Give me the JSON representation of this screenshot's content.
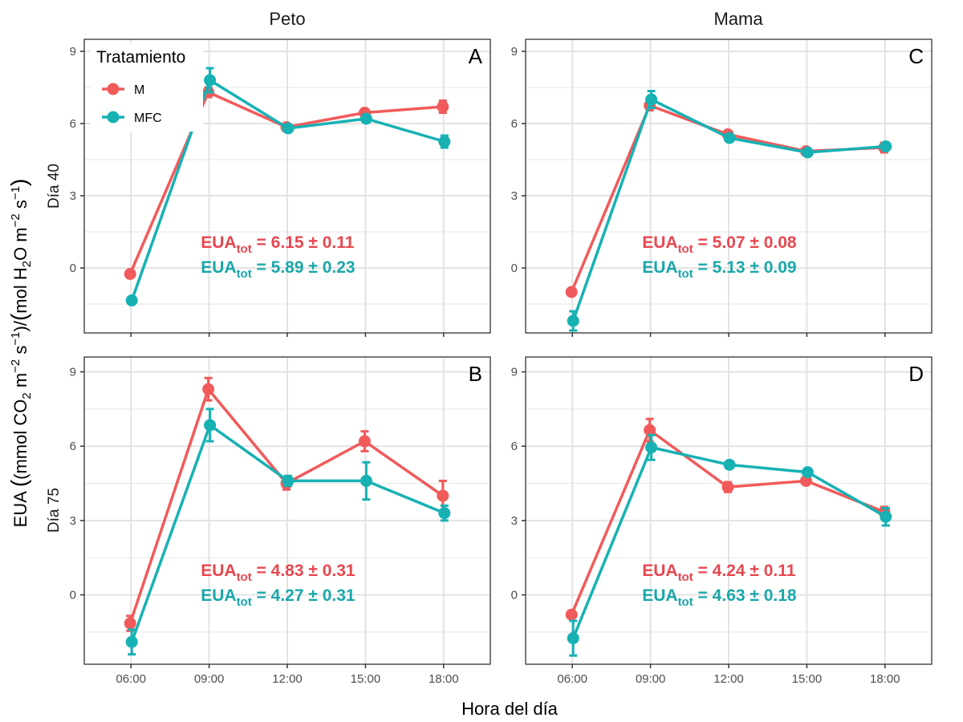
{
  "chart_data": {
    "type": "line",
    "xlabel": "Hora del día",
    "ylabel_parts": {
      "prefix": "EUA ",
      "text": "(mmol CO",
      "sub1": "2",
      "mid1": " m",
      "sup1": "−2",
      "mid2": " s",
      "sup2": "−1",
      "mid3": ")/(mol H",
      "sub2": "2",
      "mid4": "O m",
      "sup3": "−2",
      "mid5": " s",
      "sup4": "−1",
      "end": ")"
    },
    "categories": [
      "06:00",
      "09:00",
      "12:00",
      "15:00",
      "18:00"
    ],
    "yticks": [
      0,
      3,
      6,
      9
    ],
    "grid": true,
    "legend": {
      "title": "Tratamiento",
      "placement": "top-left inside panel A",
      "entries": [
        {
          "name": "M",
          "color": "#F15A5A"
        },
        {
          "name": "MFC",
          "color": "#17B1B4"
        }
      ]
    },
    "columns": [
      "Peto",
      "Mama"
    ],
    "rows": [
      "Día 40",
      "Día 75"
    ],
    "panels": [
      {
        "id": "A",
        "column": "Peto",
        "row": "Día 40",
        "ylim": [
          -2.7,
          9.5
        ],
        "series": [
          {
            "name": "M",
            "values": [
              -0.25,
              7.3,
              5.85,
              6.45,
              6.7
            ],
            "errors": [
              0.1,
              0.2,
              0.1,
              0.15,
              0.25
            ]
          },
          {
            "name": "MFC",
            "values": [
              -1.35,
              7.8,
              5.8,
              6.2,
              5.25
            ],
            "errors": [
              0.1,
              0.5,
              0.1,
              0.15,
              0.25
            ]
          }
        ],
        "annotations": [
          {
            "series": "M",
            "label": "EUA",
            "sub": "tot",
            "value": "= 6.15 ± 0.11"
          },
          {
            "series": "MFC",
            "label": "EUA",
            "sub": "tot",
            "value": "= 5.89 ± 0.23"
          }
        ]
      },
      {
        "id": "C",
        "column": "Mama",
        "row": "Día 40",
        "ylim": [
          -2.7,
          9.5
        ],
        "series": [
          {
            "name": "M",
            "values": [
              -1.0,
              6.75,
              5.55,
              4.85,
              5.0
            ],
            "errors": [
              0.1,
              0.2,
              0.1,
              0.1,
              0.2
            ]
          },
          {
            "name": "MFC",
            "values": [
              -2.2,
              7.0,
              5.4,
              4.8,
              5.05
            ],
            "errors": [
              0.4,
              0.35,
              0.1,
              0.1,
              0.15
            ]
          }
        ],
        "annotations": [
          {
            "series": "M",
            "label": "EUA",
            "sub": "tot",
            "value": "= 5.07 ± 0.08"
          },
          {
            "series": "MFC",
            "label": "EUA",
            "sub": "tot",
            "value": "= 5.13 ± 0.09"
          }
        ]
      },
      {
        "id": "B",
        "column": "Peto",
        "row": "Día 75",
        "ylim": [
          -2.8,
          9.6
        ],
        "series": [
          {
            "name": "M",
            "values": [
              -1.15,
              8.3,
              4.5,
              6.2,
              4.0
            ],
            "errors": [
              0.3,
              0.45,
              0.25,
              0.4,
              0.6
            ]
          },
          {
            "name": "MFC",
            "values": [
              -1.9,
              6.85,
              4.6,
              4.6,
              3.3
            ],
            "errors": [
              0.5,
              0.65,
              0.2,
              0.75,
              0.3
            ]
          }
        ],
        "annotations": [
          {
            "series": "M",
            "label": "EUA",
            "sub": "tot",
            "value": "= 4.83 ± 0.31"
          },
          {
            "series": "MFC",
            "label": "EUA",
            "sub": "tot",
            "value": "= 4.27 ± 0.31"
          }
        ]
      },
      {
        "id": "D",
        "column": "Mama",
        "row": "Día 75",
        "ylim": [
          -2.8,
          9.6
        ],
        "series": [
          {
            "name": "M",
            "values": [
              -0.8,
              6.65,
              4.35,
              4.6,
              3.35
            ],
            "errors": [
              0.1,
              0.45,
              0.2,
              0.1,
              0.2
            ]
          },
          {
            "name": "MFC",
            "values": [
              -1.75,
              5.95,
              5.25,
              4.95,
              3.15
            ],
            "errors": [
              0.7,
              0.5,
              0.1,
              0.15,
              0.35
            ]
          }
        ],
        "annotations": [
          {
            "series": "M",
            "label": "EUA",
            "sub": "tot",
            "value": "= 4.24 ± 0.11"
          },
          {
            "series": "MFC",
            "label": "EUA",
            "sub": "tot",
            "value": "= 4.63 ± 0.18"
          }
        ]
      }
    ]
  }
}
